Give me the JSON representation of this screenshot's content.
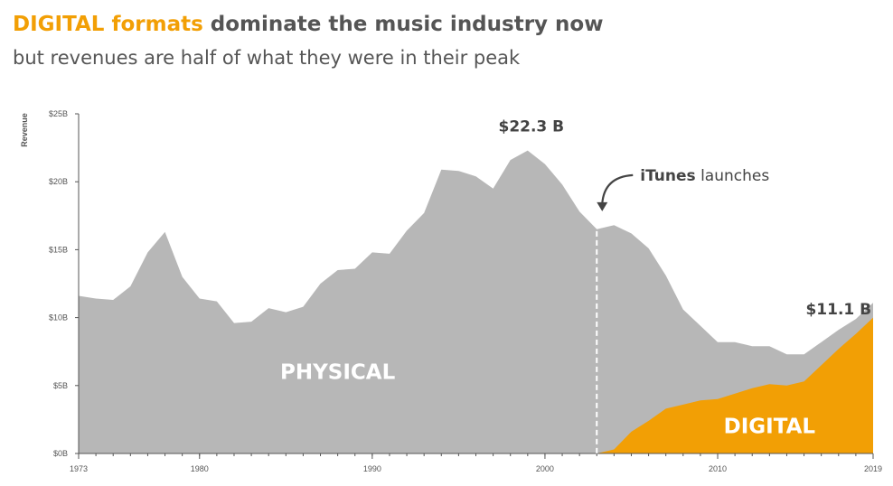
{
  "header": {
    "title_accent": "DIGITAL formats",
    "title_rest": " dominate the music industry now",
    "subtitle": "but revenues are half of what they were in their peak"
  },
  "colors": {
    "physical": "#B7B7B7",
    "digital": "#F29F05",
    "accent_text": "#F29F05",
    "text": "#555555"
  },
  "chart_data": {
    "type": "area",
    "stacked": true,
    "ylabel": "Revenue",
    "ylim": [
      0,
      25
    ],
    "yticks": [
      0,
      5,
      10,
      15,
      20,
      25
    ],
    "ytick_labels": [
      "$0B",
      "$5B",
      "$10B",
      "$15B",
      "$20B",
      "$25B"
    ],
    "xlim": [
      1973,
      2019
    ],
    "xticks": [
      1973,
      1980,
      1990,
      2000,
      2010,
      2019
    ],
    "xtick_labels": [
      "1973",
      "1980",
      "1990",
      "2000",
      "2010",
      "2019"
    ],
    "x": [
      1973,
      1974,
      1975,
      1976,
      1977,
      1978,
      1979,
      1980,
      1981,
      1982,
      1983,
      1984,
      1985,
      1986,
      1987,
      1988,
      1989,
      1990,
      1991,
      1992,
      1993,
      1994,
      1995,
      1996,
      1997,
      1998,
      1999,
      2000,
      2001,
      2002,
      2003,
      2004,
      2005,
      2006,
      2007,
      2008,
      2009,
      2010,
      2011,
      2012,
      2013,
      2014,
      2015,
      2016,
      2017,
      2018,
      2019
    ],
    "series": [
      {
        "name": "PHYSICAL",
        "color": "#B7B7B7",
        "values": [
          11.6,
          11.4,
          11.3,
          12.3,
          14.8,
          16.3,
          13.0,
          11.4,
          11.2,
          9.6,
          9.7,
          10.7,
          10.4,
          10.8,
          12.5,
          13.5,
          13.6,
          14.8,
          14.7,
          16.4,
          17.7,
          20.9,
          20.8,
          20.4,
          19.5,
          21.6,
          22.3,
          21.3,
          19.8,
          17.8,
          16.5,
          16.5,
          14.6,
          12.7,
          9.8,
          7.0,
          5.5,
          4.2,
          3.8,
          3.1,
          2.8,
          2.3,
          2.0,
          1.7,
          1.4,
          1.1,
          1.1
        ]
      },
      {
        "name": "DIGITAL",
        "color": "#F29F05",
        "values": [
          0,
          0,
          0,
          0,
          0,
          0,
          0,
          0,
          0,
          0,
          0,
          0,
          0,
          0,
          0,
          0,
          0,
          0,
          0,
          0,
          0,
          0,
          0,
          0,
          0,
          0,
          0,
          0,
          0,
          0,
          0,
          0.3,
          1.6,
          2.4,
          3.3,
          3.6,
          3.9,
          4.0,
          4.4,
          4.8,
          5.1,
          5.0,
          5.3,
          6.5,
          7.7,
          8.8,
          10.0
        ]
      }
    ],
    "annotations": [
      {
        "text": "$22.3 B",
        "x": 1999,
        "y": 22.3
      },
      {
        "text_bold": "iTunes",
        "text_rest": " launches",
        "x": 2003
      },
      {
        "text": "$11.1 B",
        "x": 2019,
        "y": 11.1
      }
    ],
    "event_line": {
      "x": 2003
    },
    "area_labels": [
      "PHYSICAL",
      "DIGITAL"
    ]
  }
}
